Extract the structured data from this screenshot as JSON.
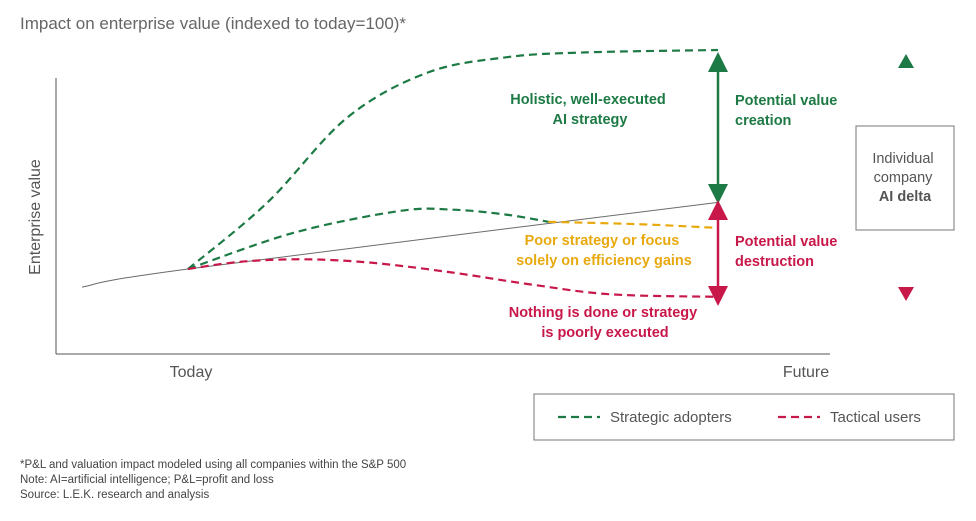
{
  "chart_data": {
    "type": "line",
    "title": "Impact on enterprise value (indexed to today=100)*",
    "ylabel": "Enterprise value",
    "xlabel": "",
    "x_ticks": [
      "Today",
      "Future"
    ],
    "series": [
      {
        "name": "",
        "style": "solid",
        "color": "#6b6b6b",
        "points": [
          [
            -0.2,
            85
          ],
          [
            0,
            100
          ],
          [
            1,
            155
          ]
        ]
      },
      {
        "name": "Strategic adopters",
        "style": "dashed",
        "color": "#1d7a45",
        "points": [
          [
            0,
            100
          ],
          [
            0.15,
            155
          ],
          [
            0.3,
            225
          ],
          [
            0.45,
            262
          ],
          [
            0.6,
            275
          ],
          [
            0.75,
            279
          ],
          [
            1,
            281
          ]
        ]
      },
      {
        "name": "Strategic adopters",
        "style": "dashed",
        "color": "#1d7a45",
        "points": [
          [
            0,
            100
          ],
          [
            0.2,
            130
          ],
          [
            0.4,
            148
          ],
          [
            0.5,
            149
          ],
          [
            0.6,
            145
          ],
          [
            0.68,
            139
          ]
        ]
      },
      {
        "name": "",
        "style": "dashed",
        "color": "#e8a90e",
        "points": [
          [
            0.68,
            139
          ],
          [
            0.85,
            137
          ],
          [
            1,
            134
          ]
        ]
      },
      {
        "name": "Tactical users",
        "style": "dashed",
        "color": "#c8184a",
        "points": [
          [
            0,
            100
          ],
          [
            0.1,
            106
          ],
          [
            0.22,
            108
          ],
          [
            0.35,
            105
          ],
          [
            0.5,
            97
          ],
          [
            0.65,
            87
          ],
          [
            0.8,
            79
          ],
          [
            1,
            77
          ]
        ]
      }
    ],
    "annotations": {
      "holistic": [
        "Holistic, well-executed",
        "AI strategy"
      ],
      "poor": [
        "Poor strategy or focus",
        "solely on efficiency gains"
      ],
      "nothing": [
        "Nothing is done or strategy",
        "is poorly executed"
      ],
      "creation": [
        "Potential value",
        "creation"
      ],
      "destruction": [
        "Potential value",
        "destruction"
      ],
      "delta": [
        "Individual",
        "company",
        "AI delta"
      ]
    },
    "legend": {
      "position": "bottom-right",
      "entries": [
        {
          "label": "Strategic adopters",
          "color": "#1d7a45"
        },
        {
          "label": "Tactical users",
          "color": "#c8184a"
        }
      ]
    },
    "colors": {
      "green": "#1d7a45",
      "red": "#c8184a",
      "orange": "#e8a90e",
      "axis": "#555555"
    }
  },
  "footnotes": [
    "*P&L and valuation impact modeled using all companies within the S&P 500",
    "Note: AI=artificial intelligence; P&L=profit and loss",
    "Source: L.E.K. research and analysis"
  ]
}
